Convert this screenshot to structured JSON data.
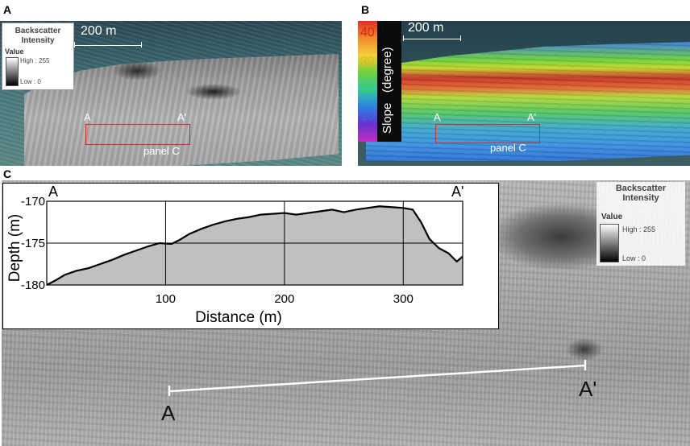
{
  "panels": {
    "a": {
      "letter": "A",
      "scale_label": "200 m",
      "legend": {
        "title": "Backscatter Intensity",
        "value_heading": "Value",
        "high": "High : 255",
        "low": "Low : 0"
      },
      "profile_start": "A",
      "profile_end": "A'",
      "box_label": "panel C"
    },
    "b": {
      "letter": "B",
      "scale_label": "200 m",
      "colorbar": {
        "ticks": [
          "40",
          "30",
          "20",
          "10"
        ],
        "label": "Slope   (degree)",
        "colors": [
          "#e0302a",
          "#f08a2a",
          "#f2d23a",
          "#6fd03a",
          "#2fc7a8",
          "#2f7fe0",
          "#6a2fd0",
          "#c02fc0"
        ]
      },
      "profile_start": "A",
      "profile_end": "A'",
      "box_label": "panel C"
    },
    "c": {
      "letter": "C",
      "profile_start": "A",
      "profile_end": "A'",
      "legend": {
        "title": "Backscatter Intensity",
        "value_heading": "Value",
        "high": "High : 255",
        "low": "Low : 0"
      }
    }
  },
  "chart_data": {
    "type": "area",
    "title": "",
    "xlabel": "Distance (m)",
    "ylabel": "Depth (m)",
    "xlim": [
      0,
      350
    ],
    "ylim": [
      -180,
      -170
    ],
    "xticks": [
      "100",
      "200",
      "300"
    ],
    "yticks": [
      "-170",
      "-175",
      "-180"
    ],
    "start_label": "A",
    "end_label": "A'",
    "grid": true,
    "fill_color": "#c0c0c0",
    "series": [
      {
        "x": [
          0,
          8,
          15,
          25,
          35,
          45,
          55,
          65,
          75,
          85,
          95,
          105,
          112,
          120,
          130,
          140,
          150,
          160,
          170,
          180,
          190,
          200,
          210,
          220,
          230,
          240,
          250,
          260,
          270,
          280,
          290,
          300,
          308,
          315,
          322,
          330,
          338,
          345,
          350
        ],
        "y": [
          -180,
          -179.4,
          -178.8,
          -178.3,
          -178.0,
          -177.5,
          -177.0,
          -176.4,
          -175.9,
          -175.4,
          -175.0,
          -175.1,
          -174.6,
          -173.9,
          -173.3,
          -172.8,
          -172.4,
          -172.1,
          -171.9,
          -171.6,
          -171.5,
          -171.4,
          -171.6,
          -171.4,
          -171.2,
          -171.0,
          -171.3,
          -171.0,
          -170.8,
          -170.6,
          -170.7,
          -170.8,
          -171.0,
          -172.5,
          -174.5,
          -175.6,
          -176.2,
          -177.2,
          -176.6
        ]
      }
    ]
  }
}
